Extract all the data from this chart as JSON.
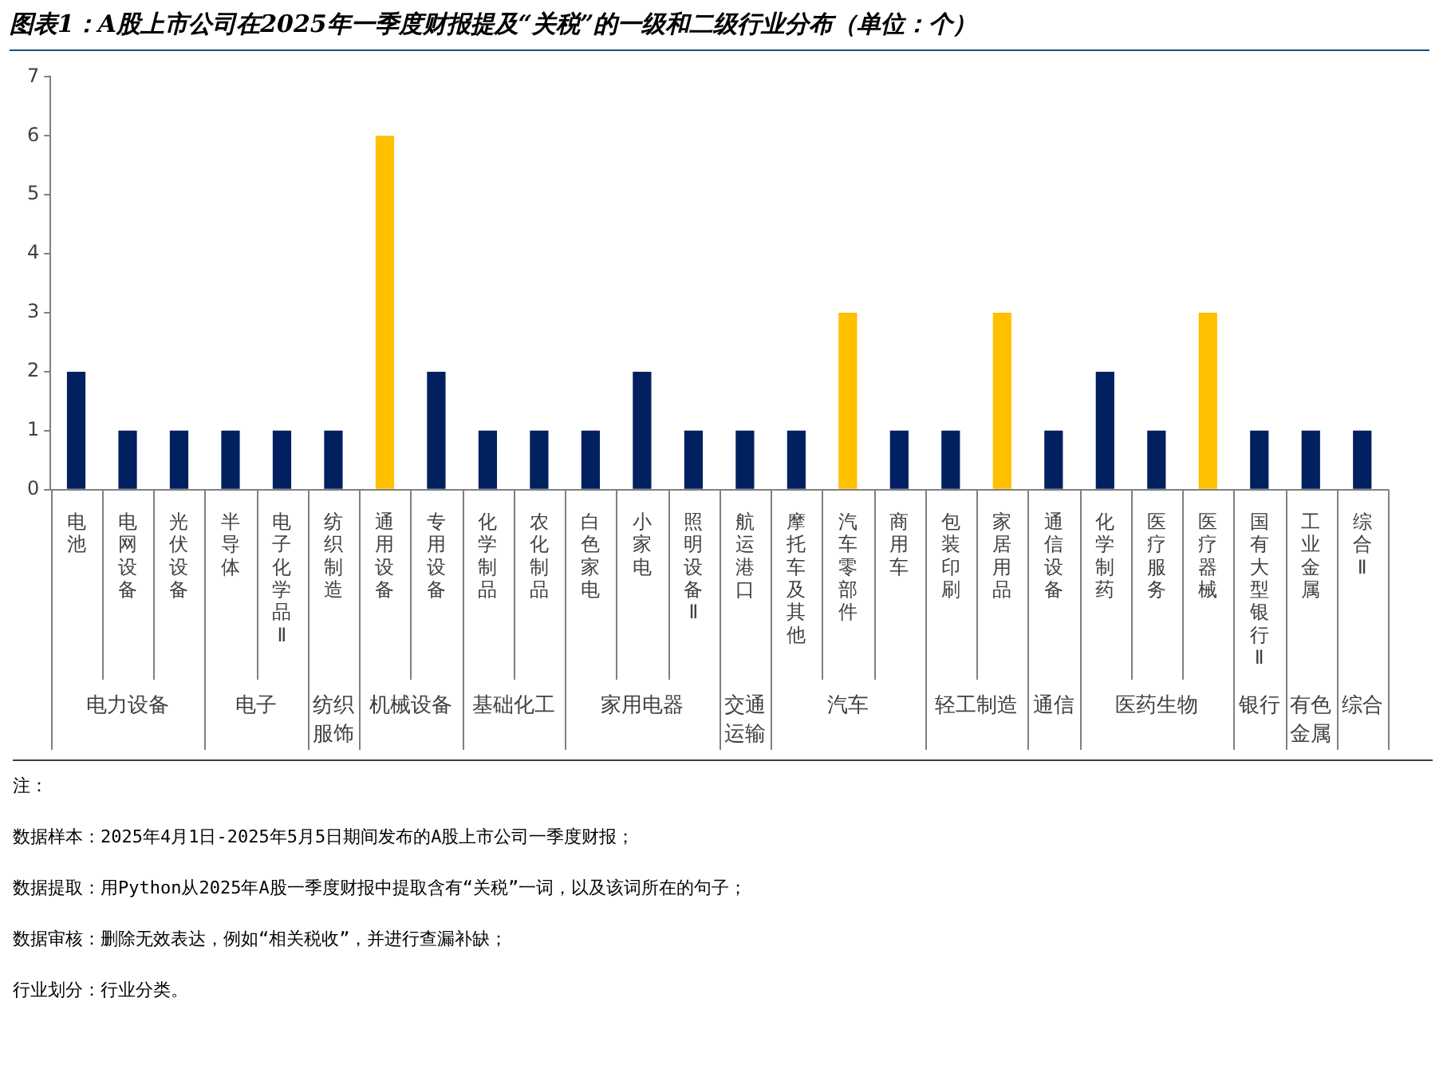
{
  "chart_data": {
    "type": "bar",
    "title": "图表1：A股上市公司在2025年一季度财报提及“关税”的一级和二级行业分布（单位：个）",
    "categories": [
      [
        "电池",
        "电力设备"
      ],
      [
        "电网设备",
        null
      ],
      [
        "光伏设备",
        null
      ],
      [
        "半导体",
        "电子"
      ],
      [
        "电子化学品Ⅱ",
        null
      ],
      [
        "纺织制造",
        "纺织服饰"
      ],
      [
        "通用设备",
        "机械设备"
      ],
      [
        "专用设备",
        null
      ],
      [
        "化学制品",
        "基础化工"
      ],
      [
        "农化制品",
        null
      ],
      [
        "白色家电",
        "家用电器"
      ],
      [
        "小家电",
        null
      ],
      [
        "照明设备Ⅱ",
        null
      ],
      [
        "航运港口",
        "交通运输"
      ],
      [
        "摩托车及其他",
        "汽车"
      ],
      [
        "汽车零部件",
        null
      ],
      [
        "商用车",
        null
      ],
      [
        "包装印刷",
        "轻工制造"
      ],
      [
        "家居用品",
        null
      ],
      [
        "通信设备",
        "通信"
      ],
      [
        "化学制药",
        "医药生物"
      ],
      [
        "医疗服务",
        null
      ],
      [
        "医疗器械",
        null
      ],
      [
        "国有大型银行Ⅱ",
        "银行"
      ],
      [
        "工业金属",
        "有色金属"
      ],
      [
        "综合Ⅱ",
        "综合"
      ]
    ],
    "values": [
      2,
      1,
      1,
      1,
      1,
      1,
      6,
      2,
      1,
      1,
      1,
      2,
      1,
      1,
      1,
      3,
      1,
      1,
      3,
      1,
      2,
      1,
      3,
      1,
      1,
      1
    ],
    "colors": [
      "#002060",
      "#002060",
      "#002060",
      "#002060",
      "#002060",
      "#002060",
      "#ffc000",
      "#002060",
      "#002060",
      "#002060",
      "#002060",
      "#002060",
      "#002060",
      "#002060",
      "#002060",
      "#ffc000",
      "#002060",
      "#002060",
      "#ffc000",
      "#002060",
      "#002060",
      "#002060",
      "#ffc000",
      "#002060",
      "#002060",
      "#002060"
    ],
    "ylim": [
      0,
      7
    ],
    "yticks": [
      0,
      1,
      2,
      3,
      4,
      5,
      6,
      7
    ],
    "annotations": [
      "注：",
      "数据样本：2025年4月1日-2025年5月5日期间发布的A股上市公司一季度财报；",
      "数据提取：用Python从2025年A股一季度财报中提取含有“关税”一词，以及该词所在的句子；",
      "数据审核：删除无效表达，例如“相关税收”，并进行查漏补缺；",
      "行业划分：行业分类。"
    ]
  }
}
